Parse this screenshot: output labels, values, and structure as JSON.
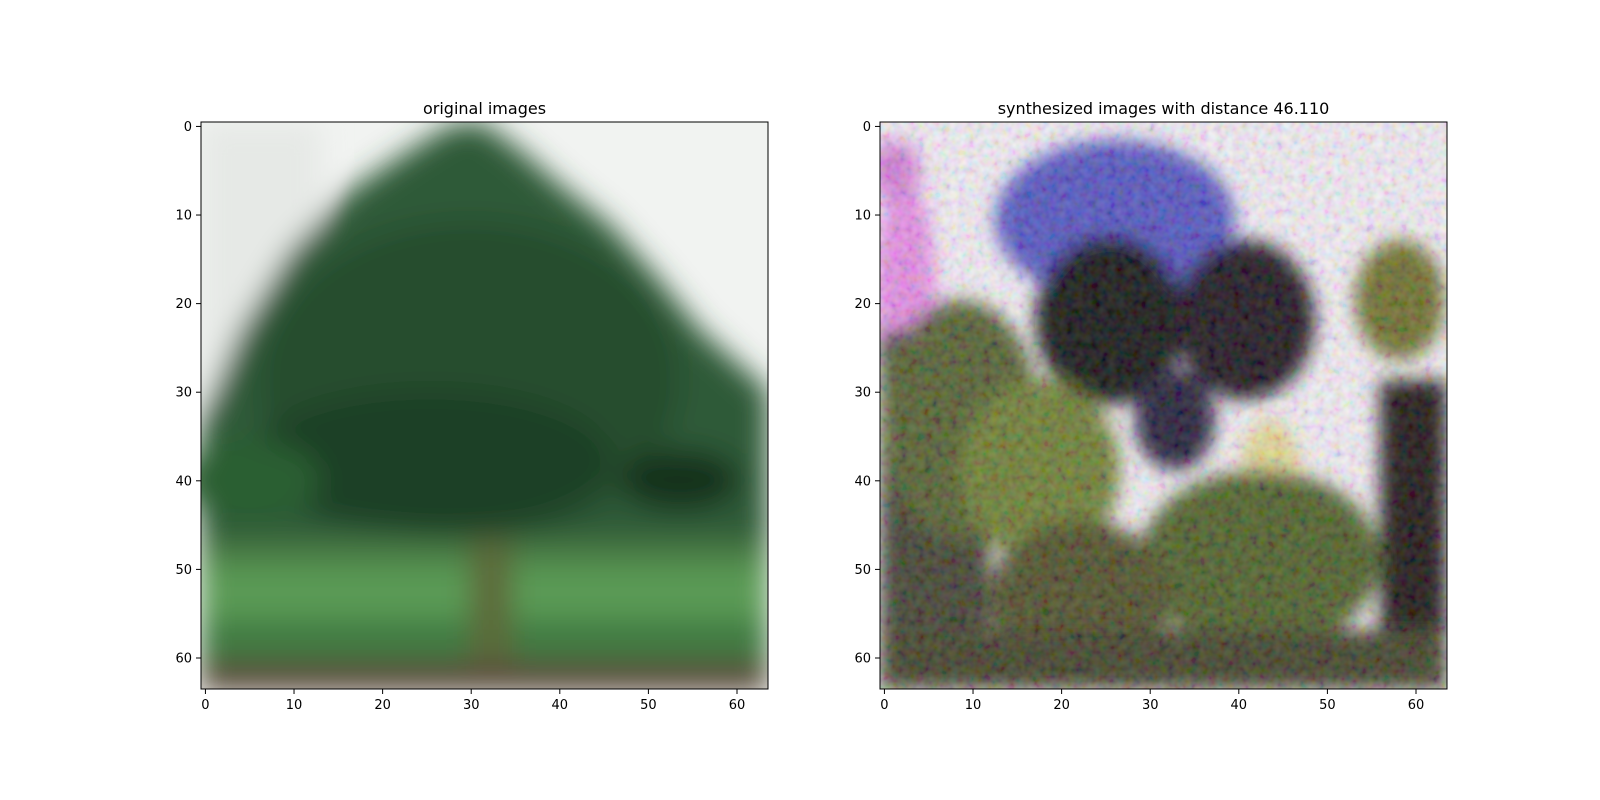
{
  "chart_data": [
    {
      "type": "heatmap",
      "title": "original images",
      "xlim": [
        -0.5,
        63.5
      ],
      "ylim": [
        63.5,
        -0.5
      ],
      "xticks": [
        0,
        10,
        20,
        30,
        40,
        50,
        60
      ],
      "yticks": [
        0,
        10,
        20,
        30,
        40,
        50,
        60
      ],
      "image_size": [
        64,
        64
      ],
      "content": "tree"
    },
    {
      "type": "heatmap",
      "title": "synthesized images with distance 46.110",
      "xlim": [
        -0.5,
        63.5
      ],
      "ylim": [
        63.5,
        -0.5
      ],
      "xticks": [
        0,
        10,
        20,
        30,
        40,
        50,
        60
      ],
      "yticks": [
        0,
        10,
        20,
        30,
        40,
        50,
        60
      ],
      "image_size": [
        64,
        64
      ],
      "content": "synthesized"
    }
  ]
}
